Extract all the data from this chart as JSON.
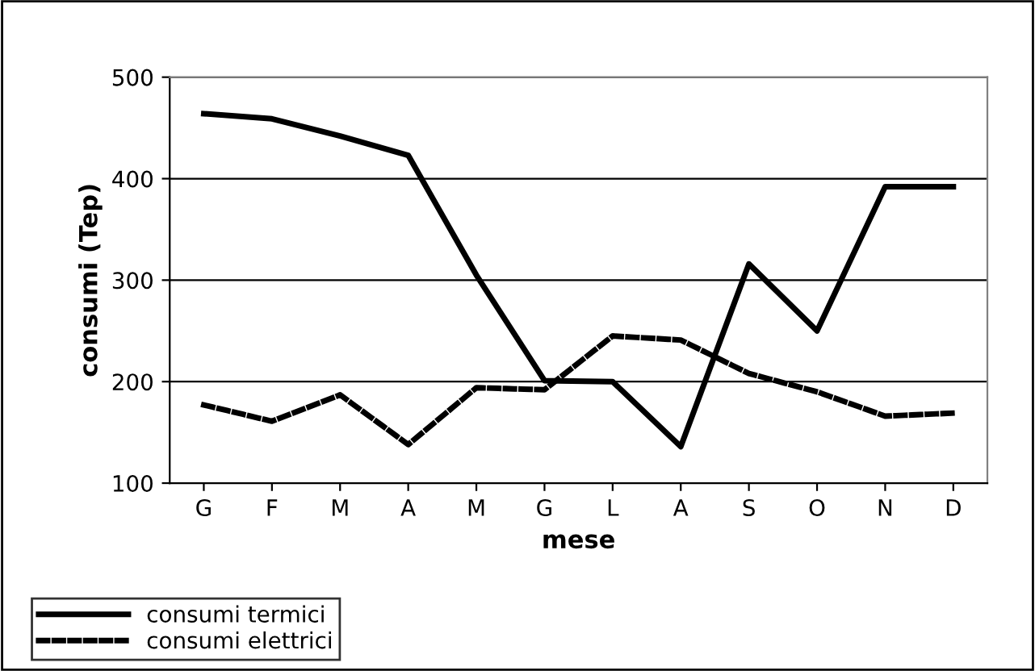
{
  "chart_data": {
    "type": "line",
    "xlabel": "mese",
    "ylabel": "consumi (Tep)",
    "categories": [
      "G",
      "F",
      "M",
      "A",
      "M",
      "G",
      "L",
      "A",
      "S",
      "O",
      "N",
      "D"
    ],
    "series": [
      {
        "name": "consumi termici",
        "color": "#000000",
        "line_style": "solid",
        "values": [
          464,
          459,
          442,
          423,
          305,
          201,
          200,
          136,
          316,
          250,
          392,
          392
        ]
      },
      {
        "name": "consumi elettrici",
        "color": "#000000",
        "line_style": "dashed",
        "values": [
          177,
          161,
          187,
          138,
          194,
          192,
          245,
          241,
          208,
          190,
          166,
          169
        ]
      }
    ],
    "ylim": [
      100,
      500
    ],
    "yticks": [
      100,
      200,
      300,
      400,
      500
    ],
    "grid": "y",
    "legend": "bottom left"
  }
}
